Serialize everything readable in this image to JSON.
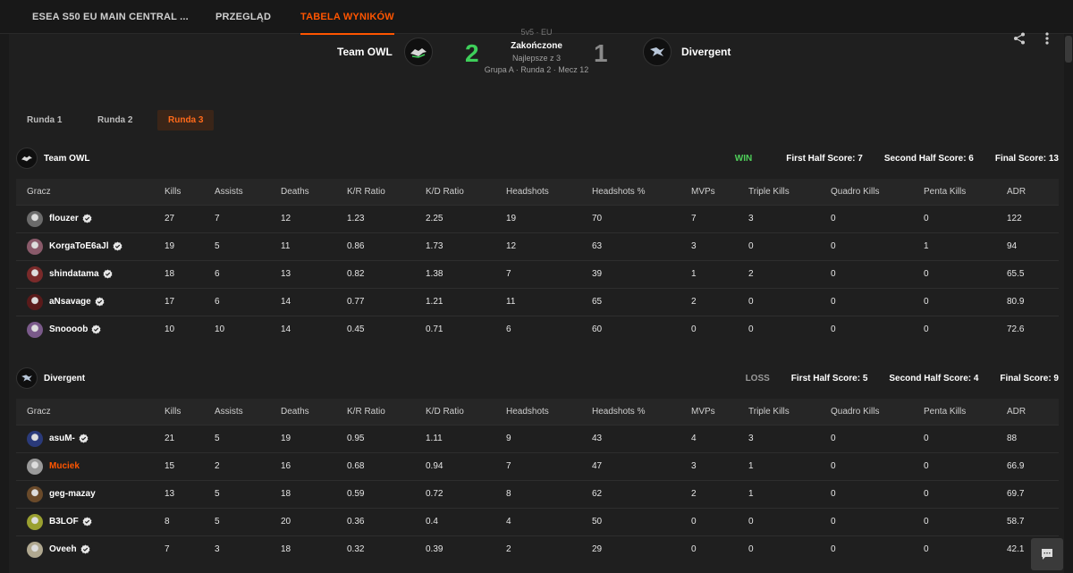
{
  "nav": {
    "items": [
      "ESEA S50 EU MAIN CENTRAL ...",
      "PRZEGLĄD",
      "TABELA WYNIKÓW"
    ],
    "active_index": 2
  },
  "match": {
    "cut_text": "5v5 · EU",
    "team1": {
      "name": "Team OWL",
      "score": "2"
    },
    "team2": {
      "name": "Divergent",
      "score": "1"
    },
    "status": "Zakończone",
    "best_of": "Najlepsze z 3",
    "details": "Grupa A · Runda 2 · Mecz 12",
    "colors": {
      "winner": "#3ecf5a",
      "loser": "#8a8a8a",
      "accent": "#ff5500"
    }
  },
  "toolbar": {
    "share_icon": "share-icon",
    "more_icon": "more-vertical-icon"
  },
  "rounds": {
    "tabs": [
      "Runda 1",
      "Runda 2",
      "Runda 3"
    ],
    "active_index": 2
  },
  "columns": [
    "Gracz",
    "Kills",
    "Assists",
    "Deaths",
    "K/R Ratio",
    "K/D Ratio",
    "Headshots",
    "Headshots %",
    "MVPs",
    "Triple Kills",
    "Quadro Kills",
    "Penta Kills",
    "ADR"
  ],
  "teams": [
    {
      "name": "Team OWL",
      "result": "WIN",
      "first_half": "First Half Score: 7",
      "second_half": "Second Half Score: 6",
      "final": "Final Score: 13",
      "players": [
        {
          "name": "flouzer",
          "verified": true,
          "highlight": false,
          "avatar_color": "#6b6b6b",
          "stats": [
            "27",
            "7",
            "12",
            "1.23",
            "2.25",
            "19",
            "70",
            "7",
            "3",
            "0",
            "0",
            "122"
          ]
        },
        {
          "name": "KorgaToE6aJl",
          "verified": true,
          "highlight": false,
          "avatar_color": "#8a5a6a",
          "stats": [
            "19",
            "5",
            "11",
            "0.86",
            "1.73",
            "12",
            "63",
            "3",
            "0",
            "0",
            "1",
            "94"
          ]
        },
        {
          "name": "shindatama",
          "verified": true,
          "highlight": false,
          "avatar_color": "#7a2a2a",
          "stats": [
            "18",
            "6",
            "13",
            "0.82",
            "1.38",
            "7",
            "39",
            "1",
            "2",
            "0",
            "0",
            "65.5"
          ]
        },
        {
          "name": "aNsavage",
          "verified": true,
          "highlight": false,
          "avatar_color": "#5a1a1a",
          "stats": [
            "17",
            "6",
            "14",
            "0.77",
            "1.21",
            "11",
            "65",
            "2",
            "0",
            "0",
            "0",
            "80.9"
          ]
        },
        {
          "name": "Snoooob",
          "verified": true,
          "highlight": false,
          "avatar_color": "#7a5a8a",
          "stats": [
            "10",
            "10",
            "14",
            "0.45",
            "0.71",
            "6",
            "60",
            "0",
            "0",
            "0",
            "0",
            "72.6"
          ]
        }
      ]
    },
    {
      "name": "Divergent",
      "result": "LOSS",
      "first_half": "First Half Score: 5",
      "second_half": "Second Half Score: 4",
      "final": "Final Score: 9",
      "players": [
        {
          "name": "asuM-",
          "verified": true,
          "highlight": false,
          "avatar_color": "#2a3a7a",
          "stats": [
            "21",
            "5",
            "19",
            "0.95",
            "1.11",
            "9",
            "43",
            "4",
            "3",
            "0",
            "0",
            "88"
          ]
        },
        {
          "name": "Muciek",
          "verified": false,
          "highlight": true,
          "avatar_color": "#9a9a9a",
          "stats": [
            "15",
            "2",
            "16",
            "0.68",
            "0.94",
            "7",
            "47",
            "3",
            "1",
            "0",
            "0",
            "66.9"
          ]
        },
        {
          "name": "geg-mazay",
          "verified": false,
          "highlight": false,
          "avatar_color": "#6a4a2a",
          "stats": [
            "13",
            "5",
            "18",
            "0.59",
            "0.72",
            "8",
            "62",
            "2",
            "1",
            "0",
            "0",
            "69.7"
          ]
        },
        {
          "name": "B3LOF",
          "verified": true,
          "highlight": false,
          "avatar_color": "#9aa030",
          "stats": [
            "8",
            "5",
            "20",
            "0.36",
            "0.4",
            "4",
            "50",
            "0",
            "0",
            "0",
            "0",
            "58.7"
          ]
        },
        {
          "name": "Oveeh",
          "verified": true,
          "highlight": false,
          "avatar_color": "#b0a890",
          "stats": [
            "7",
            "3",
            "18",
            "0.32",
            "0.39",
            "2",
            "29",
            "0",
            "0",
            "0",
            "0",
            "42.1"
          ]
        }
      ]
    }
  ],
  "chat_icon": "chat-icon"
}
